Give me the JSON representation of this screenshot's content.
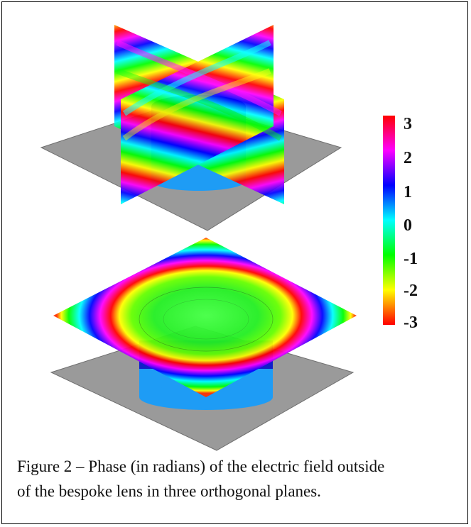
{
  "colorbar": {
    "ticks": [
      "3",
      "2",
      "1",
      "0",
      "-1",
      "-2",
      "-3"
    ],
    "range": [
      -3,
      3
    ],
    "colors": [
      "#ff0000",
      "#ff00ff",
      "#0000ff",
      "#00ffff",
      "#00ff00",
      "#ffff00",
      "#ff0000"
    ]
  },
  "colors": {
    "ground_plane": "#9a9a9a",
    "lens_light": "#2aa8ff",
    "lens_dark": "#1030d8"
  },
  "caption": {
    "line1": "Figure 2 – Phase (in radians) of the electric field outside",
    "line2": "of the bespoke lens in three orthogonal planes."
  }
}
